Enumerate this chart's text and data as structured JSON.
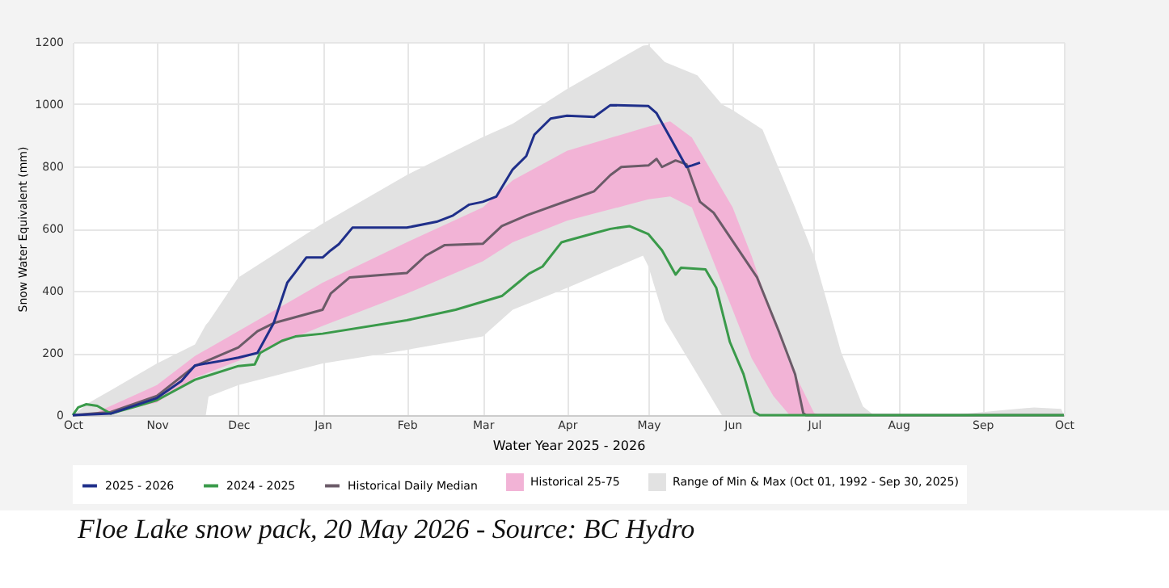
{
  "chart_data": {
    "type": "line",
    "xlabel": "Water Year 2025 - 2026",
    "ylabel": "Snow Water Equivalent (mm)",
    "xlim": [
      "2025-10-01",
      "2026-10-01"
    ],
    "xticks": [
      {
        "value": "2025-10-01",
        "label": "Oct"
      },
      {
        "value": "2025-11-01",
        "label": "Nov"
      },
      {
        "value": "2025-12-01",
        "label": "Dec"
      },
      {
        "value": "2026-01-01",
        "label": "Jan"
      },
      {
        "value": "2026-02-01",
        "label": "Feb"
      },
      {
        "value": "2026-03-01",
        "label": "Mar"
      },
      {
        "value": "2026-04-01",
        "label": "Apr"
      },
      {
        "value": "2026-05-01",
        "label": "May"
      },
      {
        "value": "2026-06-01",
        "label": "Jun"
      },
      {
        "value": "2026-07-01",
        "label": "Jul"
      },
      {
        "value": "2026-08-01",
        "label": "Aug"
      },
      {
        "value": "2026-09-01",
        "label": "Sep"
      },
      {
        "value": "2026-10-01",
        "label": "Oct"
      }
    ],
    "ylim": [
      0,
      1200
    ],
    "yticks": [
      0,
      200,
      400,
      600,
      800,
      1000,
      1200
    ],
    "grid": true,
    "legend": "bottom",
    "line_style": "solid",
    "marker": "none",
    "series": [
      {
        "name": "2025 - 2026",
        "color": "#1f2f8a",
        "x": [
          "2025-10-01",
          "2025-10-15",
          "2025-11-01",
          "2025-11-10",
          "2025-11-15",
          "2025-11-25",
          "2025-12-01",
          "2025-12-08",
          "2025-12-14",
          "2025-12-19",
          "2025-12-22",
          "2025-12-26",
          "2026-01-01",
          "2026-01-04",
          "2026-01-07",
          "2026-01-12",
          "2026-02-01",
          "2026-02-12",
          "2026-02-18",
          "2026-02-24",
          "2026-03-01",
          "2026-03-06",
          "2026-03-12",
          "2026-03-17",
          "2026-03-20",
          "2026-03-26",
          "2026-04-01",
          "2026-04-11",
          "2026-04-17",
          "2026-05-01",
          "2026-05-04",
          "2026-05-09",
          "2026-05-15",
          "2026-05-17",
          "2026-05-20"
        ],
        "values": [
          0,
          5,
          55,
          110,
          160,
          175,
          185,
          200,
          296,
          426,
          460,
          507,
          507,
          530,
          550,
          603,
          603,
          622,
          642,
          677,
          686,
          703,
          790,
          833,
          902,
          954,
          963,
          959,
          997,
          994,
          971,
          893,
          798,
          803,
          812
        ]
      },
      {
        "name": "2024 - 2025",
        "color": "#3a9a4a",
        "x": [
          "2025-10-01",
          "2025-10-03",
          "2025-10-06",
          "2025-10-10",
          "2025-10-15",
          "2025-10-25",
          "2025-11-01",
          "2025-11-15",
          "2025-12-01",
          "2025-12-07",
          "2025-12-09",
          "2025-12-17",
          "2025-12-22",
          "2026-01-01",
          "2026-02-01",
          "2026-02-19",
          "2026-03-01",
          "2026-03-08",
          "2026-03-14",
          "2026-03-18",
          "2026-03-23",
          "2026-03-30",
          "2026-04-01",
          "2026-04-11",
          "2026-04-17",
          "2026-04-24",
          "2026-05-01",
          "2026-05-06",
          "2026-05-11",
          "2026-05-13",
          "2026-05-22",
          "2026-05-26",
          "2026-05-31",
          "2026-06-05",
          "2026-06-09",
          "2026-06-11",
          "2026-10-01"
        ],
        "values": [
          0,
          25,
          35,
          30,
          5,
          30,
          48,
          114,
          158,
          163,
          200,
          239,
          253,
          262,
          305,
          339,
          365,
          383,
          426,
          455,
          478,
          556,
          561,
          585,
          599,
          608,
          582,
          530,
          452,
          474,
          469,
          409,
          235,
          132,
          10,
          0,
          0
        ]
      },
      {
        "name": "Historical Daily Median",
        "color": "#6b5b68",
        "x": [
          "2025-10-01",
          "2025-10-15",
          "2025-11-01",
          "2025-11-15",
          "2025-12-01",
          "2025-12-08",
          "2025-12-14",
          "2026-01-01",
          "2026-01-04",
          "2026-01-11",
          "2026-02-01",
          "2026-02-08",
          "2026-02-15",
          "2026-03-01",
          "2026-03-08",
          "2026-03-17",
          "2026-04-01",
          "2026-04-11",
          "2026-04-17",
          "2026-04-21",
          "2026-05-01",
          "2026-05-04",
          "2026-05-06",
          "2026-05-11",
          "2026-05-15",
          "2026-05-20",
          "2026-05-25",
          "2026-06-02",
          "2026-06-10",
          "2026-06-18",
          "2026-06-24",
          "2026-06-27",
          "2026-06-28",
          "2026-10-01"
        ],
        "values": [
          0,
          10,
          62,
          158,
          218,
          270,
          296,
          339,
          391,
          443,
          457,
          513,
          547,
          551,
          608,
          642,
          689,
          720,
          772,
          798,
          803,
          824,
          798,
          819,
          807,
          686,
          651,
          547,
          443,
          270,
          132,
          7,
          0,
          0
        ]
      },
      {
        "name": "Historical 25-75",
        "type": "area",
        "color": "#f2b3d6",
        "x": [
          "2025-10-01",
          "2025-10-10",
          "2025-11-01",
          "2025-11-15",
          "2025-12-01",
          "2026-01-01",
          "2026-02-01",
          "2026-03-01",
          "2026-03-12",
          "2026-04-01",
          "2026-05-01",
          "2026-05-09",
          "2026-05-17",
          "2026-06-01",
          "2026-06-08",
          "2026-06-16",
          "2026-06-22",
          "2026-07-01",
          "2026-07-03",
          "2026-10-01"
        ],
        "values": [
          null,
          null,
          null,
          null,
          null,
          null,
          null,
          null,
          null,
          null,
          null,
          null,
          null,
          null,
          null,
          null,
          null,
          null,
          null,
          null
        ],
        "lower": [
          0,
          0,
          40,
          120,
          175,
          287,
          391,
          495,
          556,
          625,
          694,
          703,
          668,
          339,
          183,
          62,
          0,
          0,
          0,
          0
        ],
        "upper": [
          0,
          10,
          97,
          190,
          270,
          426,
          556,
          668,
          755,
          850,
          928,
          945,
          893,
          668,
          512,
          305,
          166,
          7,
          0,
          0
        ]
      },
      {
        "name": "Range of Min & Max (Oct 01, 1992 - Sep 30, 2025)",
        "type": "area",
        "color": "#e2e2e2",
        "x": [
          "2025-10-01",
          "2025-10-07",
          "2025-10-15",
          "2025-11-01",
          "2025-11-15",
          "2025-11-19",
          "2025-11-20",
          "2025-12-01",
          "2026-01-01",
          "2026-02-01",
          "2026-03-01",
          "2026-03-12",
          "2026-04-01",
          "2026-04-29",
          "2026-05-01",
          "2026-05-07",
          "2026-05-19",
          "2026-05-28",
          "2026-06-01",
          "2026-06-12",
          "2026-06-24",
          "2026-07-01",
          "2026-07-11",
          "2026-07-19",
          "2026-07-23",
          "2026-08-20",
          "2026-09-01",
          "2026-09-20",
          "2026-09-30",
          "2026-10-01"
        ],
        "values": [
          null,
          null,
          null,
          null,
          null,
          null,
          null,
          null,
          null,
          null,
          null,
          null,
          null,
          null,
          null,
          null,
          null,
          null,
          null,
          null,
          null,
          null,
          null,
          null,
          null,
          null,
          null,
          null,
          null,
          null
        ],
        "lower": [
          0,
          0,
          0,
          0,
          0,
          0,
          60,
          97,
          166,
          210,
          253,
          339,
          409,
          513,
          478,
          305,
          132,
          0,
          0,
          0,
          0,
          0,
          0,
          0,
          0,
          0,
          0,
          0,
          0,
          0
        ],
        "upper": [
          0,
          40,
          80,
          166,
          227,
          290,
          300,
          443,
          616,
          772,
          894,
          937,
          1049,
          1188,
          1190,
          1136,
          1093,
          1000,
          981,
          919,
          668,
          512,
          201,
          28,
          0,
          0,
          10,
          25,
          20,
          0
        ]
      }
    ],
    "annotations": [
      "Floe Lake snow pack, 20 May 2026 - Source: BC Hydro"
    ]
  }
}
